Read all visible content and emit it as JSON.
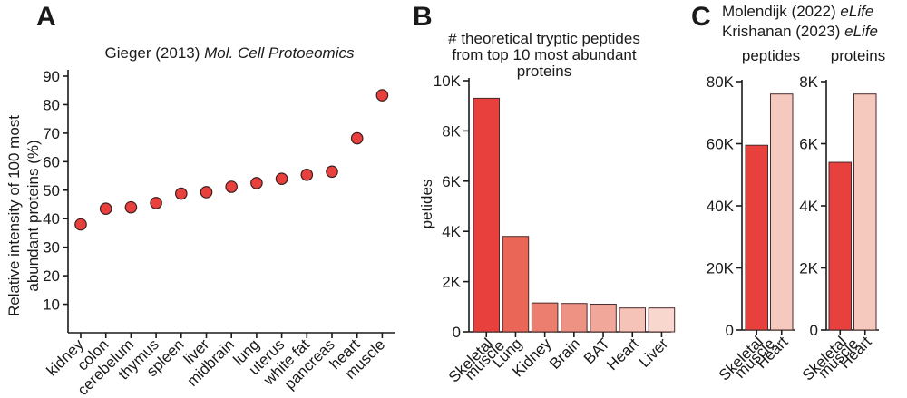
{
  "panels": {
    "a": {
      "letter": "A"
    },
    "b": {
      "letter": "B"
    },
    "c": {
      "letter": "C"
    }
  },
  "chart_data": [
    {
      "id": "A",
      "type": "scatter",
      "title_plain": "Gieger (2013) ",
      "title_italic": "Mol. Cell Protoeomics",
      "ylabel_lines": [
        "Relative intensity of 100 most",
        "abundant proteins (%)"
      ],
      "ylim": [
        0,
        90
      ],
      "yticks": [
        10,
        20,
        30,
        40,
        50,
        60,
        70,
        80,
        90
      ],
      "ytick_labels": [
        "10",
        "20",
        "30",
        "40",
        "50",
        "60",
        "70",
        "80",
        "90"
      ],
      "categories": [
        "kidney",
        "colon",
        "cerebelum",
        "thymus",
        "spleen",
        "liver",
        "midbrain",
        "lung",
        "uterus",
        "white fat",
        "pancreas",
        "heart",
        "muscle"
      ],
      "values": [
        38,
        43.5,
        44,
        45.5,
        48.8,
        49.3,
        51.2,
        52.5,
        54,
        55.4,
        56.5,
        68.2,
        83.3
      ],
      "color": "#e8403d"
    },
    {
      "id": "B",
      "type": "bar",
      "title_lines": [
        "# theoretical tryptic peptides",
        "from top  10 most abundant",
        "proteins"
      ],
      "ylabel": "petides",
      "ylim": [
        0,
        10000
      ],
      "yticks": [
        0,
        2000,
        4000,
        6000,
        8000,
        10000
      ],
      "ytick_labels": [
        "0",
        "2K",
        "4K",
        "6K",
        "8K",
        "10K"
      ],
      "categories": [
        "Skeletal muscle",
        "Lung",
        "Kidney",
        "Brain",
        "BAT",
        "Heart",
        "Liver"
      ],
      "category_label_lines": [
        [
          "Skeletal",
          "muscle"
        ],
        [
          "Lung"
        ],
        [
          "Kidney"
        ],
        [
          "Brain"
        ],
        [
          "BAT"
        ],
        [
          "Heart"
        ],
        [
          "Liver"
        ]
      ],
      "values": [
        9300,
        3800,
        1150,
        1130,
        1100,
        950,
        950
      ],
      "colors": [
        "#e8403d",
        "#ea6656",
        "#eb7e6e",
        "#ee9384",
        "#f1a799",
        "#f5c3b7",
        "#f8d7ce"
      ]
    },
    {
      "id": "C",
      "title_line1_plain": "Molendijk (2022) ",
      "title_line1_italic": "eLife",
      "title_line2_plain": "Krishanan (2023) ",
      "title_line2_italic": "eLife",
      "subcharts": [
        {
          "type": "bar",
          "title": "peptides",
          "ylim": [
            0,
            80000
          ],
          "yticks": [
            0,
            20000,
            40000,
            60000,
            80000
          ],
          "ytick_labels": [
            "0",
            "20K",
            "40K",
            "60K",
            "80K"
          ],
          "categories": [
            "Skeletal muscle",
            "Heart"
          ],
          "category_label_lines": [
            [
              "Skeletal",
              "muscle"
            ],
            [
              "Heart"
            ]
          ],
          "values": [
            59500,
            76000
          ],
          "colors": [
            "#e8403d",
            "#f5c9bd"
          ]
        },
        {
          "type": "bar",
          "title": "proteins",
          "ylim": [
            0,
            8000
          ],
          "yticks": [
            0,
            2000,
            4000,
            6000,
            8000
          ],
          "ytick_labels": [
            "0",
            "2K",
            "4K",
            "6K",
            "8K"
          ],
          "categories": [
            "Skeletal muscle",
            "Heart"
          ],
          "category_label_lines": [
            [
              "Skeletal",
              "muscle"
            ],
            [
              "Heart"
            ]
          ],
          "values": [
            5400,
            7600
          ],
          "colors": [
            "#e8403d",
            "#f5c9bd"
          ]
        }
      ]
    }
  ]
}
